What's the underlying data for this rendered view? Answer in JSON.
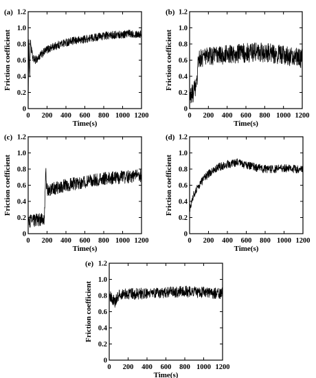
{
  "chart_data": [
    {
      "type": "line",
      "panel_label": "(a)",
      "xlabel": "Time(s)",
      "ylabel": "Friction coefficient",
      "xlim": [
        0,
        1200
      ],
      "ylim": [
        0,
        1.2
      ],
      "xticks": [
        "0",
        "200",
        "400",
        "600",
        "800",
        "1000",
        "1200"
      ],
      "yticks": [
        "0",
        "0.2",
        "0.4",
        "0.6",
        "0.8",
        "1.0",
        "1.2"
      ],
      "grid": false,
      "legend": "none",
      "series": [
        {
          "x": [
            0,
            8,
            15,
            25,
            35,
            50,
            70,
            100,
            150,
            200,
            300,
            400,
            500,
            600,
            700,
            800,
            900,
            1000,
            1100,
            1200
          ],
          "values": [
            0.0,
            0.9,
            0.35,
            0.85,
            0.72,
            0.62,
            0.6,
            0.62,
            0.68,
            0.73,
            0.78,
            0.82,
            0.84,
            0.86,
            0.88,
            0.9,
            0.91,
            0.92,
            0.93,
            0.92
          ],
          "noise": 0.05
        }
      ]
    },
    {
      "type": "line",
      "panel_label": "(b)",
      "xlabel": "Time(s)",
      "ylabel": "Friction coefficient",
      "xlim": [
        0,
        1200
      ],
      "ylim": [
        0,
        1.2
      ],
      "xticks": [
        "0",
        "200",
        "400",
        "600",
        "800",
        "1000",
        "1200"
      ],
      "yticks": [
        "0",
        "0.2",
        "0.4",
        "0.6",
        "0.8",
        "1.0",
        "1.2"
      ],
      "grid": false,
      "legend": "none",
      "series": [
        {
          "x": [
            0,
            20,
            40,
            60,
            80,
            90,
            100,
            150,
            200,
            300,
            400,
            500,
            600,
            700,
            800,
            900,
            1000,
            1100,
            1200
          ],
          "values": [
            0.12,
            0.17,
            0.2,
            0.25,
            0.3,
            0.55,
            0.62,
            0.64,
            0.65,
            0.66,
            0.67,
            0.68,
            0.69,
            0.7,
            0.69,
            0.68,
            0.66,
            0.64,
            0.62
          ],
          "noise": 0.12
        }
      ]
    },
    {
      "type": "line",
      "panel_label": "(c)",
      "xlabel": "Time(s)",
      "ylabel": "Friction coefficient",
      "xlim": [
        0,
        1200
      ],
      "ylim": [
        0,
        1.2
      ],
      "xticks": [
        "0",
        "200",
        "400",
        "600",
        "800",
        "1000",
        "1200"
      ],
      "yticks": [
        "0",
        "0.2",
        "0.4",
        "0.6",
        "0.8",
        "1.0",
        "1.2"
      ],
      "grid": false,
      "legend": "none",
      "series": [
        {
          "x": [
            0,
            50,
            100,
            150,
            170,
            180,
            185,
            195,
            210,
            250,
            300,
            400,
            500,
            600,
            700,
            800,
            900,
            1000,
            1100,
            1200
          ],
          "values": [
            0.15,
            0.16,
            0.17,
            0.18,
            0.19,
            0.5,
            0.8,
            0.58,
            0.53,
            0.55,
            0.57,
            0.6,
            0.62,
            0.64,
            0.66,
            0.68,
            0.69,
            0.7,
            0.71,
            0.72
          ],
          "noise": 0.08
        }
      ]
    },
    {
      "type": "line",
      "panel_label": "(d)",
      "xlabel": "Time(s)",
      "ylabel": "Friction coefficient",
      "xlim": [
        0,
        1200
      ],
      "ylim": [
        0,
        1.2
      ],
      "xticks": [
        "0",
        "200",
        "400",
        "600",
        "800",
        "1000",
        "1200"
      ],
      "yticks": [
        "0",
        "0.2",
        "0.4",
        "0.6",
        "0.8",
        "1.0",
        "1.2"
      ],
      "grid": false,
      "legend": "none",
      "series": [
        {
          "x": [
            0,
            20,
            50,
            100,
            150,
            200,
            300,
            400,
            500,
            600,
            700,
            800,
            900,
            1000,
            1100,
            1200
          ],
          "values": [
            0.3,
            0.4,
            0.5,
            0.6,
            0.68,
            0.74,
            0.82,
            0.86,
            0.88,
            0.85,
            0.82,
            0.8,
            0.8,
            0.81,
            0.8,
            0.8
          ],
          "noise": 0.05
        }
      ]
    },
    {
      "type": "line",
      "panel_label": "(e)",
      "xlabel": "Time(s)",
      "ylabel": "Friction coefficient",
      "xlim": [
        0,
        1200
      ],
      "ylim": [
        0,
        1.2
      ],
      "xticks": [
        "0",
        "200",
        "400",
        "600",
        "800",
        "1000",
        "1200"
      ],
      "yticks": [
        "0",
        "0.2",
        "0.4",
        "0.6",
        "0.8",
        "1.0",
        "1.2"
      ],
      "grid": false,
      "legend": "none",
      "series": [
        {
          "x": [
            0,
            20,
            40,
            60,
            80,
            100,
            150,
            200,
            300,
            400,
            500,
            600,
            700,
            800,
            900,
            1000,
            1100,
            1200
          ],
          "values": [
            0.8,
            0.78,
            0.75,
            0.72,
            0.76,
            0.8,
            0.82,
            0.82,
            0.82,
            0.83,
            0.83,
            0.84,
            0.84,
            0.85,
            0.84,
            0.84,
            0.83,
            0.83
          ],
          "noise": 0.07
        }
      ]
    }
  ]
}
